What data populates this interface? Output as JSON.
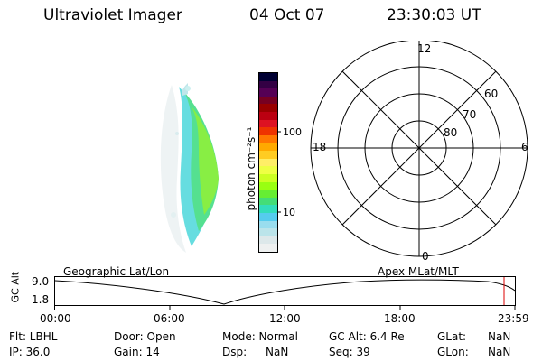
{
  "header": {
    "instrument": "Ultraviolet Imager",
    "date": "04 Oct 07",
    "time": "23:30:03 UT"
  },
  "colorbar": {
    "label": "photon cm⁻²s⁻¹",
    "ticks": [
      "100",
      "10"
    ],
    "colors": [
      "#000033",
      "#330044",
      "#550055",
      "#770022",
      "#990000",
      "#bb0011",
      "#dd1122",
      "#ee3300",
      "#ff7700",
      "#ffaa00",
      "#ffcc22",
      "#ffee66",
      "#eeff44",
      "#ccff22",
      "#99ff11",
      "#66ee33",
      "#44dd77",
      "#33ddbb",
      "#55ccee",
      "#99ddee",
      "#bbe4ea",
      "#dde8ea",
      "#eef0f0"
    ]
  },
  "polar": {
    "mlt_labels": [
      "12",
      "18",
      "6",
      "0"
    ],
    "lat_labels": [
      "60",
      "70",
      "80"
    ]
  },
  "timeline": {
    "ylabel": "GC Alt",
    "ymax": "9.0",
    "ymin": "1.8",
    "left_caption": "Geographic Lat/Lon",
    "right_caption": "Apex  MLat/MLT",
    "xticks": [
      "00:00",
      "06:00",
      "12:00",
      "18:00",
      "23:59"
    ]
  },
  "info": {
    "flt": "Flt: LBHL",
    "door": "Door: Open",
    "mode": "Mode: Normal",
    "gcalt": "GC Alt: 6.4 Re",
    "glat_label": "GLat:",
    "glat_value": "NaN",
    "ip": "IP: 36.0",
    "gain": "Gain: 14",
    "dsp_label": "Dsp:",
    "dsp_value": "NaN",
    "seq": "Seq: 39",
    "glon_label": "GLon:",
    "glon_value": "NaN"
  }
}
